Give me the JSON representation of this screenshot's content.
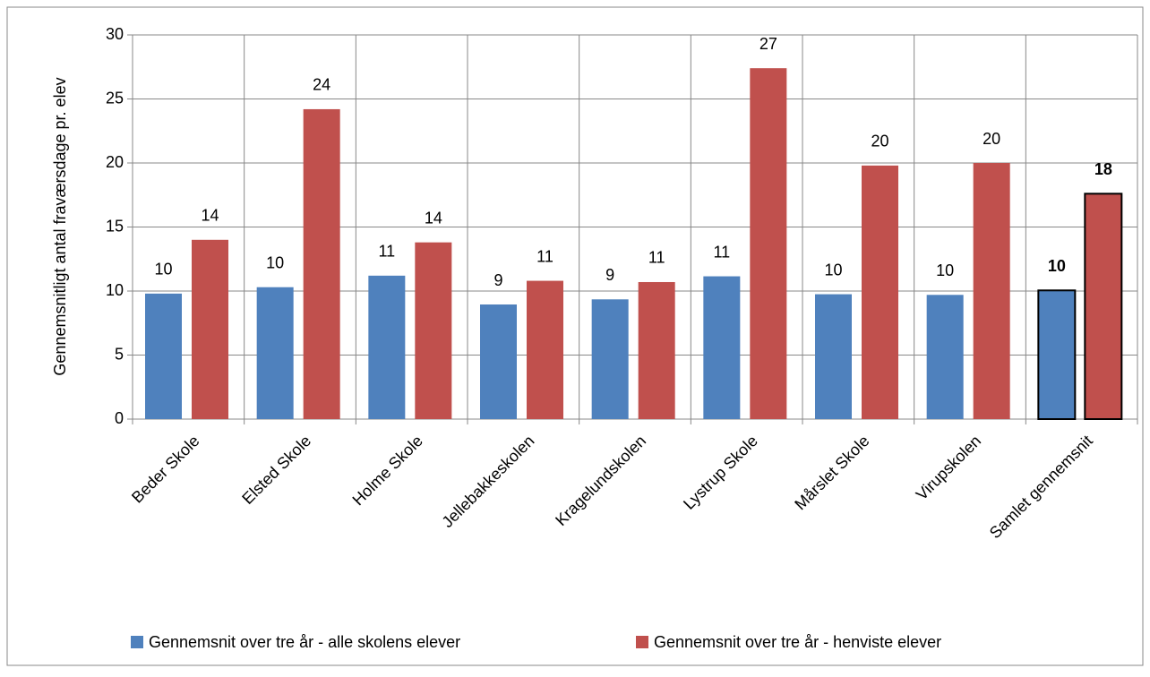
{
  "chart_data": {
    "type": "bar",
    "y_label": "Gennemsnitligt antal fraværsdage pr. elev",
    "categories": [
      "Beder Skole",
      "Elsted Skole",
      "Holme Skole",
      "Jellebakkeskolen",
      "Kragelundskolen",
      "Lystrup Skole",
      "Mårslet Skole",
      "Virupskolen",
      "Samlet gennemsnit"
    ],
    "series": [
      {
        "name": "Gennemsnit over tre år - alle skolens elever",
        "color": "#4f81bd",
        "values": [
          9.8,
          10.3,
          11.2,
          8.95,
          9.35,
          11.15,
          9.75,
          9.7,
          10.05
        ],
        "value_labels": [
          "10",
          "10",
          "11",
          "9",
          "9",
          "11",
          "10",
          "10",
          "10"
        ]
      },
      {
        "name": "Gennemsnit over tre år - henviste elever",
        "color": "#c0504d",
        "values": [
          14.0,
          24.2,
          13.8,
          10.8,
          10.7,
          27.4,
          19.8,
          20.0,
          17.6
        ],
        "value_labels": [
          "14",
          "24",
          "14",
          "11",
          "11",
          "27",
          "20",
          "20",
          "18"
        ]
      }
    ],
    "ylim": [
      0,
      30
    ],
    "yticks": [
      0,
      5,
      10,
      15,
      20,
      25,
      30
    ],
    "grid": true,
    "legend": "bottom",
    "highlight_last": true
  }
}
